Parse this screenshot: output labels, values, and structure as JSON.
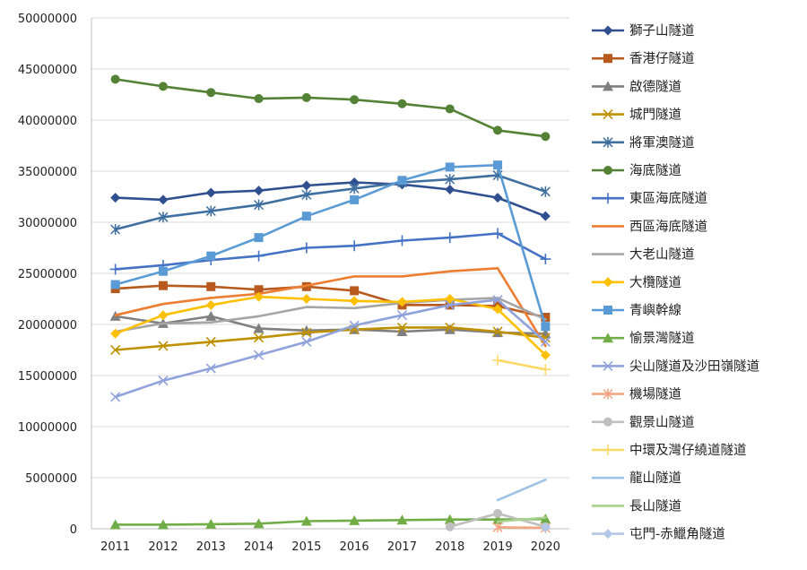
{
  "chart_data": {
    "type": "line",
    "title": "",
    "xlabel": "",
    "ylabel": "",
    "ylim": [
      0,
      50000000
    ],
    "y_ticks": [
      "0",
      "5000000",
      "10000000",
      "15000000",
      "20000000",
      "25000000",
      "30000000",
      "35000000",
      "40000000",
      "45000000",
      "50000000"
    ],
    "categories": [
      "2011",
      "2012",
      "2013",
      "2014",
      "2015",
      "2016",
      "2017",
      "2018",
      "2019",
      "2020"
    ],
    "legend_position": "right",
    "series": [
      {
        "name": "獅子山隧道",
        "color": "#2f4f8f",
        "marker": "diamond",
        "values": [
          32400000,
          32200000,
          32900000,
          33100000,
          33600000,
          33900000,
          33700000,
          33200000,
          32400000,
          30600000
        ]
      },
      {
        "name": "香港仔隧道",
        "color": "#b85a1e",
        "marker": "square",
        "values": [
          23500000,
          23800000,
          23700000,
          23400000,
          23700000,
          23300000,
          21900000,
          21900000,
          21800000,
          20700000
        ]
      },
      {
        "name": "啟德隧道",
        "color": "#7f7f7f",
        "marker": "triangle",
        "values": [
          20800000,
          20100000,
          20800000,
          19600000,
          19400000,
          19500000,
          19300000,
          19500000,
          19200000,
          19100000
        ]
      },
      {
        "name": "城門隧道",
        "color": "#bf9000",
        "marker": "x",
        "values": [
          17500000,
          17900000,
          18300000,
          18700000,
          19200000,
          19500000,
          19700000,
          19700000,
          19300000,
          18700000
        ]
      },
      {
        "name": "將軍澳隧道",
        "color": "#3f6f9f",
        "marker": "star",
        "values": [
          29300000,
          30500000,
          31100000,
          31700000,
          32700000,
          33300000,
          33900000,
          34200000,
          34600000,
          33000000
        ]
      },
      {
        "name": "海底隧道",
        "color": "#548235",
        "marker": "circle",
        "values": [
          44000000,
          43300000,
          42700000,
          42100000,
          42200000,
          42000000,
          41600000,
          41100000,
          39000000,
          38400000
        ]
      },
      {
        "name": "東區海底隧道",
        "color": "#4472c4",
        "marker": "plus",
        "values": [
          25400000,
          25800000,
          26300000,
          26700000,
          27500000,
          27700000,
          28200000,
          28500000,
          28900000,
          26400000
        ]
      },
      {
        "name": "西區海底隧道",
        "color": "#ed7d31",
        "marker": "none",
        "values": [
          20900000,
          22000000,
          22600000,
          23000000,
          23800000,
          24700000,
          24700000,
          25200000,
          25500000,
          17900000
        ]
      },
      {
        "name": "大老山隧道",
        "color": "#a5a5a5",
        "marker": "none",
        "values": [
          19300000,
          20100000,
          20200000,
          20800000,
          21700000,
          21600000,
          22100000,
          22400000,
          22600000,
          20500000
        ]
      },
      {
        "name": "大欖隧道",
        "color": "#ffc000",
        "marker": "diamond",
        "values": [
          19100000,
          20900000,
          21900000,
          22700000,
          22500000,
          22300000,
          22200000,
          22500000,
          21500000,
          17000000
        ]
      },
      {
        "name": "青嶼幹線",
        "color": "#5b9bd5",
        "marker": "square",
        "values": [
          23900000,
          25200000,
          26700000,
          28500000,
          30600000,
          32200000,
          34100000,
          35400000,
          35600000,
          19800000
        ]
      },
      {
        "name": "愉景灣隧道",
        "color": "#70ad47",
        "marker": "triangle",
        "values": [
          400000,
          400000,
          450000,
          500000,
          750000,
          800000,
          850000,
          900000,
          900000,
          950000
        ]
      },
      {
        "name": "尖山隧道及沙田嶺隧道",
        "color": "#8fa2dc",
        "marker": "x",
        "values": [
          12900000,
          14500000,
          15700000,
          17000000,
          18300000,
          19900000,
          20900000,
          21900000,
          22400000,
          18300000
        ]
      },
      {
        "name": "機場隧道",
        "color": "#f4a582",
        "marker": "star",
        "values": [
          null,
          null,
          null,
          null,
          null,
          null,
          null,
          null,
          150000,
          100000
        ]
      },
      {
        "name": "觀景山隧道",
        "color": "#bfbfbf",
        "marker": "circle",
        "values": [
          null,
          null,
          null,
          null,
          null,
          null,
          null,
          200000,
          1500000,
          200000
        ]
      },
      {
        "name": "中環及灣仔繞道隧道",
        "color": "#ffd966",
        "marker": "plus",
        "values": [
          null,
          null,
          null,
          null,
          null,
          null,
          null,
          null,
          16500000,
          15600000
        ]
      },
      {
        "name": "龍山隧道",
        "color": "#9dc3e6",
        "marker": "none",
        "values": [
          null,
          null,
          null,
          null,
          null,
          null,
          null,
          null,
          2800000,
          4800000
        ]
      },
      {
        "name": "長山隧道",
        "color": "#a9d18e",
        "marker": "none",
        "values": [
          null,
          null,
          null,
          null,
          null,
          null,
          null,
          null,
          700000,
          1100000
        ]
      },
      {
        "name": "屯門-赤鱲角隧道",
        "color": "#b4c7e7",
        "marker": "diamond",
        "values": [
          null,
          null,
          null,
          null,
          null,
          null,
          null,
          null,
          null,
          150000
        ]
      }
    ]
  }
}
